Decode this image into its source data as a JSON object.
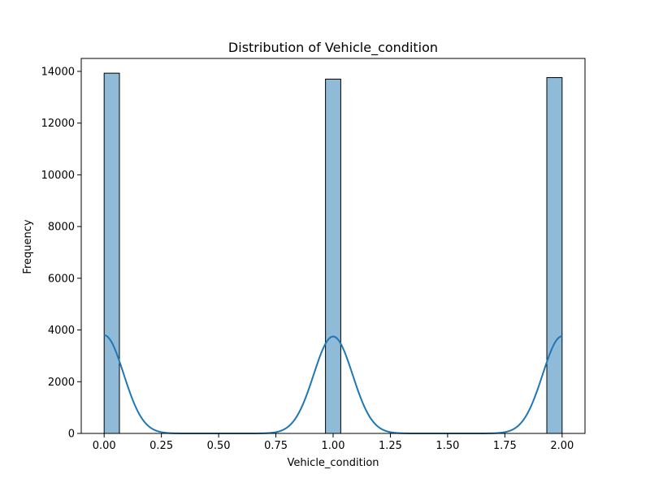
{
  "chart_data": {
    "type": "bar",
    "title": "Distribution of Vehicle_condition",
    "xlabel": "Vehicle_condition",
    "ylabel": "Frequency",
    "xlim": [
      -0.1,
      2.1
    ],
    "ylim": [
      0,
      14500
    ],
    "xticks": [
      0.0,
      0.25,
      0.5,
      0.75,
      1.0,
      1.25,
      1.5,
      1.75,
      2.0
    ],
    "xtick_labels": [
      "0.00",
      "0.25",
      "0.50",
      "0.75",
      "1.00",
      "1.25",
      "1.50",
      "1.75",
      "2.00"
    ],
    "yticks": [
      0,
      2000,
      4000,
      6000,
      8000,
      10000,
      12000,
      14000
    ],
    "ytick_labels": [
      "0",
      "2000",
      "4000",
      "6000",
      "8000",
      "10000",
      "12000",
      "14000"
    ],
    "grid": false,
    "bin_width": 0.0667,
    "bars": [
      {
        "x_start": 0.0,
        "x_end": 0.0667,
        "value": 13930
      },
      {
        "x_start": 0.9667,
        "x_end": 1.0333,
        "value": 13700
      },
      {
        "x_start": 1.9333,
        "x_end": 2.0,
        "value": 13760
      }
    ],
    "kde_peaks": [
      {
        "center": 0.0,
        "height": 3800
      },
      {
        "center": 1.0,
        "height": 3750
      },
      {
        "center": 2.0,
        "height": 3760
      }
    ],
    "kde_sigma": 0.085,
    "colors": {
      "bar_fill": "#1f77b4",
      "bar_fill_opacity": 0.5,
      "bar_edge": "#000000",
      "kde_line": "#1f77b4"
    }
  }
}
